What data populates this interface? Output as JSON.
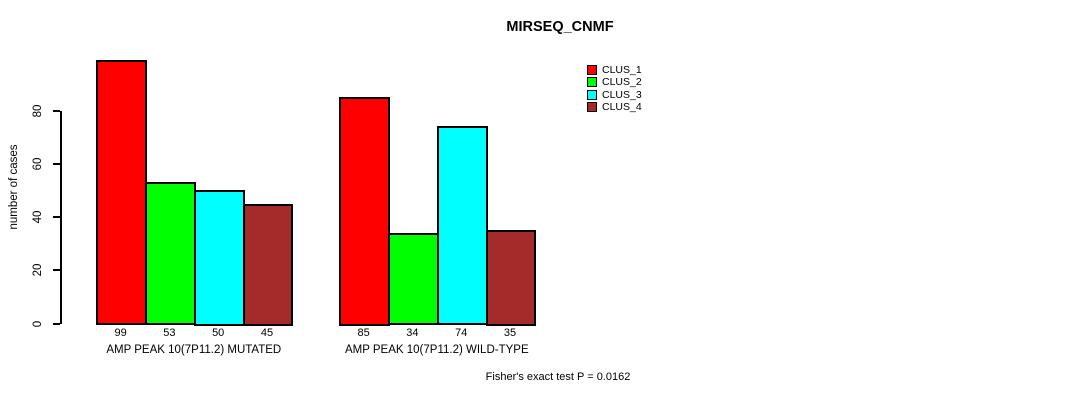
{
  "title": "MIRSEQ_CNMF",
  "footer": "Fisher's exact test P = 0.0162",
  "chart_data": {
    "type": "bar",
    "title": "MIRSEQ_CNMF",
    "xlabel": "",
    "ylabel": "number of cases",
    "yticks": [
      0,
      20,
      40,
      60,
      80
    ],
    "ylim": [
      0,
      99
    ],
    "grid": false,
    "legend_position": "top-right",
    "bar_value_labels_shown": true,
    "categories": [
      "AMP PEAK 10(7P11.2) MUTATED",
      "AMP PEAK 10(7P11.2) WILD-TYPE"
    ],
    "series": [
      {
        "name": "CLUS_1",
        "color": "#FF0000",
        "values": [
          99,
          85
        ]
      },
      {
        "name": "CLUS_2",
        "color": "#00FF00",
        "values": [
          53,
          34
        ]
      },
      {
        "name": "CLUS_3",
        "color": "#00FFFF",
        "values": [
          50,
          74
        ]
      },
      {
        "name": "CLUS_4",
        "color": "#A52A2A",
        "values": [
          45,
          35
        ]
      }
    ],
    "annotation": "Fisher's exact test P = 0.0162"
  }
}
